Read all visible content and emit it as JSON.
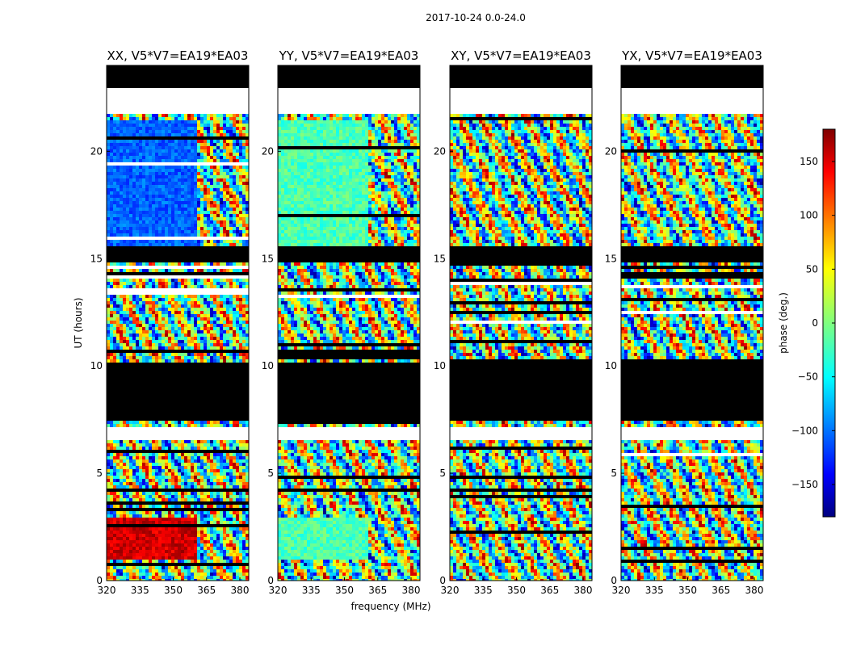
{
  "figure": {
    "suptitle": "2017-10-24 0.0-24.0",
    "xlabel": "frequency (MHz)",
    "ylabel": "UT (hours)"
  },
  "chart_data": {
    "type": "heatmap",
    "panels": [
      {
        "title": "XX, V5*V7=EA19*EA03",
        "pol": "XX"
      },
      {
        "title": "YY, V5*V7=EA19*EA03",
        "pol": "YY"
      },
      {
        "title": "XY, V5*V7=EA19*EA03",
        "pol": "XY"
      },
      {
        "title": "YX, V5*V7=EA19*EA03",
        "pol": "YX"
      }
    ],
    "x_ticks": [
      "320",
      "335",
      "350",
      "365",
      "380"
    ],
    "x_tick_values": [
      320,
      335,
      350,
      365,
      380
    ],
    "xlim": [
      320,
      384
    ],
    "y_ticks": [
      "0",
      "5",
      "10",
      "15",
      "20"
    ],
    "y_tick_values": [
      0,
      5,
      10,
      15,
      20
    ],
    "ylim": [
      0,
      24
    ],
    "colorbar": {
      "label": "phase (deg.)",
      "ticks": [
        "150",
        "100",
        "50",
        "0",
        "−50",
        "−100",
        "−150"
      ],
      "tick_values": [
        150,
        100,
        50,
        0,
        -50,
        -100,
        -150
      ],
      "range": [
        -180,
        180
      ],
      "colormap": "jet"
    },
    "flagged_ut_bands": [
      [
        23.0,
        24.0
      ],
      [
        7.5,
        10.1
      ],
      [
        14.8,
        15.5
      ]
    ],
    "blank_ut_bands": [
      [
        21.8,
        23.0
      ],
      [
        6.5,
        7.2
      ]
    ]
  }
}
